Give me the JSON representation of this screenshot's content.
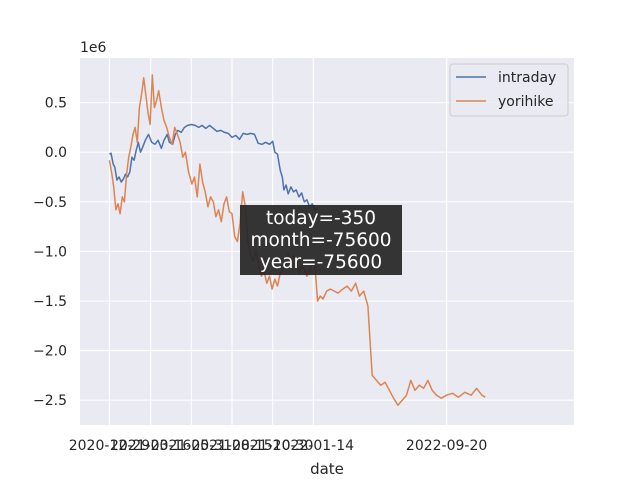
{
  "chart_data": {
    "type": "line",
    "xlabel": "date",
    "ylabel": "",
    "y_offset_label": "1e6",
    "ylim": [
      -2.75,
      0.95
    ],
    "xlim": [
      "2020-11-04",
      "2023-05-16"
    ],
    "grid": true,
    "legend_position": "top-right",
    "x_ticks": [
      "2020-12-29",
      "2021-03-16",
      "2021-05-31",
      "2021-08-15",
      "2021-10-30",
      "2022-01-14",
      "2022-09-20"
    ],
    "y_ticks": [
      {
        "value": 0.5,
        "label": "0.5"
      },
      {
        "value": 0.0,
        "label": "0.0"
      },
      {
        "value": -0.5,
        "label": "−0.5"
      },
      {
        "value": -1.0,
        "label": "−1.0"
      },
      {
        "value": -1.5,
        "label": "−1.5"
      },
      {
        "value": -2.0,
        "label": "−2.0"
      },
      {
        "value": -2.5,
        "label": "−2.5"
      }
    ],
    "annotation": [
      "today=-350",
      "month=-75600",
      "year=-75600"
    ],
    "series": [
      {
        "name": "intraday",
        "color": "#4c72b0",
        "points": [
          [
            "2020-12-29",
            -0.02
          ],
          [
            "2021-01-01",
            -0.01
          ],
          [
            "2021-01-05",
            -0.12
          ],
          [
            "2021-01-08",
            -0.15
          ],
          [
            "2021-01-12",
            -0.28
          ],
          [
            "2021-01-16",
            -0.25
          ],
          [
            "2021-01-20",
            -0.3
          ],
          [
            "2021-01-24",
            -0.27
          ],
          [
            "2021-01-28",
            -0.22
          ],
          [
            "2021-02-01",
            -0.25
          ],
          [
            "2021-02-05",
            -0.2
          ],
          [
            "2021-02-09",
            -0.05
          ],
          [
            "2021-02-13",
            -0.08
          ],
          [
            "2021-02-17",
            0.02
          ],
          [
            "2021-02-21",
            0.1
          ],
          [
            "2021-02-25",
            0.0
          ],
          [
            "2021-03-01",
            0.05
          ],
          [
            "2021-03-06",
            0.12
          ],
          [
            "2021-03-12",
            0.18
          ],
          [
            "2021-03-18",
            0.1
          ],
          [
            "2021-03-24",
            0.08
          ],
          [
            "2021-03-30",
            0.12
          ],
          [
            "2021-04-05",
            0.04
          ],
          [
            "2021-04-10",
            0.12
          ],
          [
            "2021-04-16",
            0.18
          ],
          [
            "2021-04-20",
            0.1
          ],
          [
            "2021-04-26",
            0.08
          ],
          [
            "2021-05-01",
            0.18
          ],
          [
            "2021-05-06",
            0.22
          ],
          [
            "2021-05-12",
            0.2
          ],
          [
            "2021-05-18",
            0.25
          ],
          [
            "2021-05-24",
            0.27
          ],
          [
            "2021-05-31",
            0.28
          ],
          [
            "2021-06-07",
            0.27
          ],
          [
            "2021-06-14",
            0.25
          ],
          [
            "2021-06-20",
            0.27
          ],
          [
            "2021-06-27",
            0.24
          ],
          [
            "2021-07-04",
            0.27
          ],
          [
            "2021-07-11",
            0.24
          ],
          [
            "2021-07-18",
            0.21
          ],
          [
            "2021-07-25",
            0.22
          ],
          [
            "2021-08-01",
            0.2
          ],
          [
            "2021-08-08",
            0.19
          ],
          [
            "2021-08-15",
            0.15
          ],
          [
            "2021-08-22",
            0.17
          ],
          [
            "2021-08-29",
            0.13
          ],
          [
            "2021-09-05",
            0.19
          ],
          [
            "2021-09-12",
            0.18
          ],
          [
            "2021-09-19",
            0.19
          ],
          [
            "2021-09-26",
            0.18
          ],
          [
            "2021-10-03",
            0.09
          ],
          [
            "2021-10-10",
            0.08
          ],
          [
            "2021-10-17",
            0.1
          ],
          [
            "2021-10-24",
            0.08
          ],
          [
            "2021-10-30",
            0.11
          ],
          [
            "2021-11-03",
            0.0
          ],
          [
            "2021-11-08",
            -0.02
          ],
          [
            "2021-11-13",
            -0.18
          ],
          [
            "2021-11-17",
            -0.25
          ],
          [
            "2021-11-20",
            -0.38
          ],
          [
            "2021-11-24",
            -0.33
          ],
          [
            "2021-11-28",
            -0.42
          ],
          [
            "2021-12-03",
            -0.35
          ],
          [
            "2021-12-08",
            -0.4
          ],
          [
            "2021-12-13",
            -0.38
          ],
          [
            "2021-12-18",
            -0.45
          ],
          [
            "2021-12-23",
            -0.41
          ],
          [
            "2021-12-28",
            -0.5
          ],
          [
            "2022-01-02",
            -0.48
          ],
          [
            "2022-01-07",
            -0.55
          ],
          [
            "2022-01-12",
            -0.52
          ],
          [
            "2022-01-17",
            -0.58
          ],
          [
            "2022-01-21",
            -0.57
          ]
        ]
      },
      {
        "name": "yorihike",
        "color": "#dd8452",
        "points": [
          [
            "2020-12-29",
            -0.08
          ],
          [
            "2021-01-02",
            -0.2
          ],
          [
            "2021-01-06",
            -0.35
          ],
          [
            "2021-01-10",
            -0.58
          ],
          [
            "2021-01-14",
            -0.52
          ],
          [
            "2021-01-18",
            -0.62
          ],
          [
            "2021-01-22",
            -0.45
          ],
          [
            "2021-01-26",
            -0.5
          ],
          [
            "2021-01-30",
            -0.22
          ],
          [
            "2021-02-03",
            -0.05
          ],
          [
            "2021-02-07",
            0.05
          ],
          [
            "2021-02-11",
            0.18
          ],
          [
            "2021-02-15",
            0.25
          ],
          [
            "2021-02-19",
            0.1
          ],
          [
            "2021-02-23",
            0.45
          ],
          [
            "2021-02-27",
            0.58
          ],
          [
            "2021-03-03",
            0.75
          ],
          [
            "2021-03-07",
            0.58
          ],
          [
            "2021-03-11",
            0.4
          ],
          [
            "2021-03-15",
            0.28
          ],
          [
            "2021-03-19",
            0.78
          ],
          [
            "2021-03-23",
            0.45
          ],
          [
            "2021-03-27",
            0.52
          ],
          [
            "2021-03-31",
            0.62
          ],
          [
            "2021-04-05",
            0.45
          ],
          [
            "2021-04-10",
            0.32
          ],
          [
            "2021-04-15",
            0.25
          ],
          [
            "2021-04-20",
            0.15
          ],
          [
            "2021-04-25",
            0.08
          ],
          [
            "2021-04-30",
            0.25
          ],
          [
            "2021-05-05",
            0.18
          ],
          [
            "2021-05-10",
            0.1
          ],
          [
            "2021-05-15",
            -0.05
          ],
          [
            "2021-05-20",
            0.0
          ],
          [
            "2021-05-26",
            -0.2
          ],
          [
            "2021-06-01",
            -0.32
          ],
          [
            "2021-06-06",
            -0.25
          ],
          [
            "2021-06-11",
            -0.45
          ],
          [
            "2021-06-16",
            -0.12
          ],
          [
            "2021-06-21",
            -0.3
          ],
          [
            "2021-06-26",
            -0.4
          ],
          [
            "2021-07-01",
            -0.55
          ],
          [
            "2021-07-06",
            -0.45
          ],
          [
            "2021-07-11",
            -0.5
          ],
          [
            "2021-07-16",
            -0.65
          ],
          [
            "2021-07-21",
            -0.58
          ],
          [
            "2021-07-26",
            -0.7
          ],
          [
            "2021-07-31",
            -0.52
          ],
          [
            "2021-08-05",
            -0.45
          ],
          [
            "2021-08-10",
            -0.6
          ],
          [
            "2021-08-15",
            -0.62
          ],
          [
            "2021-08-20",
            -0.85
          ],
          [
            "2021-08-25",
            -0.9
          ],
          [
            "2021-08-30",
            -0.72
          ],
          [
            "2021-09-04",
            -0.4
          ],
          [
            "2021-09-09",
            -0.55
          ],
          [
            "2021-09-14",
            -0.92
          ],
          [
            "2021-09-19",
            -1.05
          ],
          [
            "2021-09-24",
            -1.1
          ],
          [
            "2021-09-29",
            -0.98
          ],
          [
            "2021-10-04",
            -1.15
          ],
          [
            "2021-10-09",
            -1.25
          ],
          [
            "2021-10-14",
            -1.2
          ],
          [
            "2021-10-19",
            -1.32
          ],
          [
            "2021-10-24",
            -1.25
          ],
          [
            "2021-10-29",
            -1.38
          ],
          [
            "2021-11-03",
            -1.28
          ],
          [
            "2021-11-08",
            -1.35
          ],
          [
            "2021-11-13",
            -1.22
          ],
          [
            "2021-11-18",
            -1.18
          ],
          [
            "2021-11-23",
            -1.15
          ],
          [
            "2021-11-28",
            -1.02
          ],
          [
            "2021-12-03",
            -1.1
          ],
          [
            "2021-12-08",
            -1.05
          ],
          [
            "2021-12-13",
            -1.08
          ],
          [
            "2021-12-18",
            -1.22
          ],
          [
            "2021-12-23",
            -1.15
          ],
          [
            "2021-12-28",
            -1.18
          ],
          [
            "2022-01-02",
            -1.25
          ],
          [
            "2022-01-07",
            -1.2
          ],
          [
            "2022-01-12",
            -1.1
          ],
          [
            "2022-01-17",
            -1.15
          ],
          [
            "2022-01-22",
            -1.5
          ],
          [
            "2022-01-27",
            -1.45
          ],
          [
            "2022-02-01",
            -1.48
          ],
          [
            "2022-02-08",
            -1.4
          ],
          [
            "2022-02-15",
            -1.38
          ],
          [
            "2022-02-22",
            -1.4
          ],
          [
            "2022-03-01",
            -1.42
          ],
          [
            "2022-03-10",
            -1.38
          ],
          [
            "2022-03-18",
            -1.35
          ],
          [
            "2022-03-26",
            -1.4
          ],
          [
            "2022-04-03",
            -1.32
          ],
          [
            "2022-04-10",
            -1.45
          ],
          [
            "2022-04-18",
            -1.4
          ],
          [
            "2022-04-26",
            -1.55
          ],
          [
            "2022-05-04",
            -2.25
          ],
          [
            "2022-05-12",
            -2.3
          ],
          [
            "2022-05-20",
            -2.35
          ],
          [
            "2022-05-28",
            -2.32
          ],
          [
            "2022-06-05",
            -2.4
          ],
          [
            "2022-06-13",
            -2.48
          ],
          [
            "2022-06-21",
            -2.55
          ],
          [
            "2022-06-29",
            -2.5
          ],
          [
            "2022-07-07",
            -2.45
          ],
          [
            "2022-07-15",
            -2.3
          ],
          [
            "2022-07-23",
            -2.4
          ],
          [
            "2022-07-31",
            -2.35
          ],
          [
            "2022-08-08",
            -2.38
          ],
          [
            "2022-08-16",
            -2.3
          ],
          [
            "2022-08-24",
            -2.4
          ],
          [
            "2022-09-01",
            -2.45
          ],
          [
            "2022-09-10",
            -2.48
          ],
          [
            "2022-09-20",
            -2.45
          ],
          [
            "2022-10-01",
            -2.43
          ],
          [
            "2022-10-12",
            -2.47
          ],
          [
            "2022-10-24",
            -2.42
          ],
          [
            "2022-11-05",
            -2.45
          ],
          [
            "2022-11-15",
            -2.38
          ],
          [
            "2022-11-25",
            -2.45
          ],
          [
            "2022-12-01",
            -2.47
          ]
        ]
      }
    ]
  }
}
